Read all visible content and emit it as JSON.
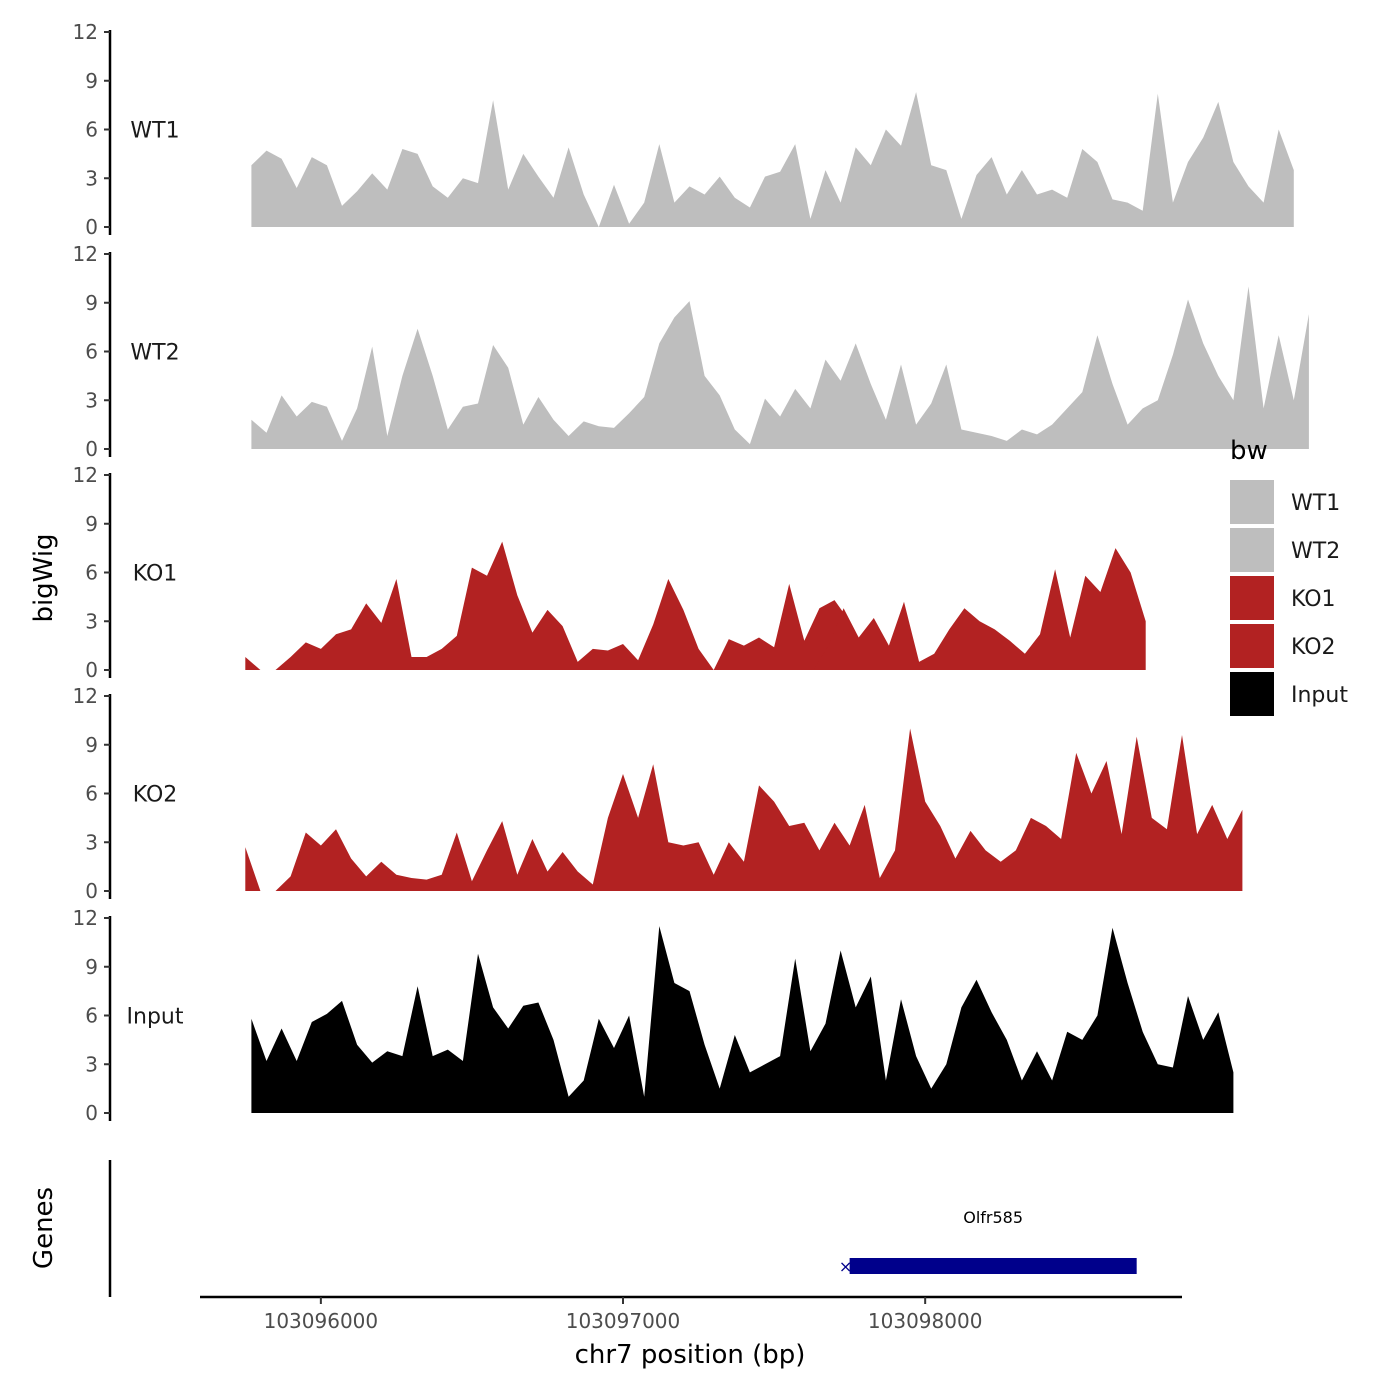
{
  "chart_data": {
    "type": "area",
    "ylabel": "bigWig",
    "xlabel": "chr7 position (bp)",
    "xlim": [
      103095600,
      103098850
    ],
    "ylim": [
      0,
      12
    ],
    "y_ticks": [
      0,
      3,
      6,
      9,
      12
    ],
    "x_ticks": [
      103096000,
      103097000,
      103098000
    ],
    "x_tick_labels": [
      "103096000",
      "103097000",
      "103098000"
    ],
    "genes_label": "Genes",
    "legend": {
      "title": "bw",
      "position": "right",
      "entries": [
        {
          "name": "WT1",
          "color": "#bebebe"
        },
        {
          "name": "WT2",
          "color": "#bebebe"
        },
        {
          "name": "KO1",
          "color": "#b22222"
        },
        {
          "name": "KO2",
          "color": "#b22222"
        },
        {
          "name": "Input",
          "color": "#000000"
        }
      ]
    },
    "series": [
      {
        "name": "WT1",
        "color": "#bebebe",
        "x_start": 103095770,
        "step": 50,
        "values": [
          3.8,
          4.7,
          4.2,
          2.4,
          4.3,
          3.8,
          1.3,
          2.2,
          3.3,
          2.3,
          4.8,
          4.5,
          2.5,
          1.8,
          3.0,
          2.7,
          7.8,
          2.3,
          4.5,
          3.1,
          1.8,
          4.9,
          2.0,
          0.0,
          2.6,
          0.2,
          1.5,
          5.1,
          1.5,
          2.5,
          2.0,
          3.1,
          1.8,
          1.2,
          3.1,
          3.4,
          5.1,
          0.5,
          3.5,
          1.5,
          4.9,
          3.8,
          6.0,
          5.0,
          8.3,
          3.8,
          3.5,
          0.5,
          3.2,
          4.3,
          2.0,
          3.5,
          2.0,
          2.3,
          1.8,
          4.8,
          4.0,
          1.7,
          1.5,
          1.0,
          8.2,
          1.5,
          4.0,
          5.5,
          7.7,
          4.0,
          2.5,
          1.5,
          6.0,
          3.5
        ]
      },
      {
        "name": "WT2",
        "color": "#bebebe",
        "x_start": 103095770,
        "step": 50,
        "values": [
          1.8,
          1.0,
          3.3,
          2.0,
          2.9,
          2.6,
          0.5,
          2.5,
          6.3,
          0.8,
          4.5,
          7.4,
          4.5,
          1.2,
          2.6,
          2.8,
          6.4,
          5.0,
          1.5,
          3.2,
          1.8,
          0.8,
          1.7,
          1.4,
          1.3,
          2.2,
          3.2,
          6.5,
          8.1,
          9.1,
          4.5,
          3.3,
          1.2,
          0.3,
          3.1,
          2.0,
          3.7,
          2.5,
          5.5,
          4.2,
          6.5,
          4.0,
          1.8,
          5.2,
          1.5,
          2.8,
          5.2,
          1.2,
          1.0,
          0.8,
          0.5,
          1.2,
          0.9,
          1.5,
          2.5,
          3.5,
          7.0,
          4.0,
          1.5,
          2.5,
          3.0,
          5.8,
          9.2,
          6.5,
          4.5,
          3.0,
          10.0,
          2.5,
          7.0,
          3.0,
          8.3
        ]
      },
      {
        "name": "KO1",
        "color": "#b22222",
        "x_start": 103095770,
        "step": 50,
        "segments": [
          {
            "x_start": 103095750,
            "values": [
              0.8,
              0.0
            ]
          },
          {
            "x_start": 103095850,
            "values": [
              0.0,
              0.8,
              1.7,
              1.3,
              2.2,
              2.5,
              4.1,
              2.9,
              5.6,
              0.8,
              0.8,
              1.3,
              2.1,
              6.3,
              5.8,
              7.9,
              4.6,
              2.3,
              3.7,
              2.7,
              0.5,
              1.3,
              1.2,
              1.6,
              0.6,
              2.8,
              5.6,
              3.7,
              1.3,
              0.0,
              1.9,
              1.5,
              2.0,
              1.4,
              5.3,
              1.8,
              3.8,
              4.3,
              3.0,
              0.8,
              0.0
            ]
          },
          {
            "x_start": 103097630,
            "values": [
              0.0,
              1.5,
              3.8,
              2.0,
              3.2,
              1.5,
              4.2,
              0.5,
              1.0,
              2.5,
              3.8,
              3.0,
              2.5,
              1.8,
              1.0,
              2.2,
              6.2,
              2.0,
              5.8,
              4.8,
              7.5,
              6.0,
              3.0
            ]
          }
        ]
      },
      {
        "name": "KO2",
        "color": "#b22222",
        "x_start": 103095770,
        "step": 50,
        "segments": [
          {
            "x_start": 103095750,
            "values": [
              2.7,
              0.0
            ]
          },
          {
            "x_start": 103095850,
            "values": [
              0.0,
              0.9,
              3.6,
              2.8,
              3.8,
              2.0,
              0.9,
              1.8,
              1.0,
              0.8,
              0.7,
              1.0,
              3.6,
              0.6,
              2.5,
              4.3,
              1.0,
              3.2,
              1.2,
              2.4,
              1.2,
              0.4,
              4.5,
              7.2,
              4.5,
              7.8,
              3.0,
              2.8,
              3.0,
              1.0,
              3.0,
              1.8,
              6.5,
              5.5,
              4.0,
              4.2,
              2.5,
              4.2,
              2.8,
              5.3,
              0.8,
              2.5,
              10.0,
              5.5,
              4.0,
              2.0,
              3.7,
              2.5,
              1.8,
              2.5,
              4.5,
              4.0,
              3.2,
              8.5,
              6.0,
              8.0,
              3.5,
              9.5,
              4.5,
              3.8,
              9.6,
              3.5,
              5.3,
              3.2,
              5.0
            ]
          }
        ]
      },
      {
        "name": "Input",
        "color": "#000000",
        "x_start": 103095770,
        "step": 50,
        "values": [
          5.8,
          3.2,
          5.2,
          3.2,
          5.6,
          6.1,
          6.9,
          4.2,
          3.1,
          3.8,
          3.5,
          7.8,
          3.5,
          3.9,
          3.2,
          9.8,
          6.5,
          5.2,
          6.6,
          6.8,
          4.5,
          1.0,
          2.0,
          5.8,
          4.0,
          6.0,
          1.0,
          11.5,
          8.0,
          7.5,
          4.2,
          1.5,
          4.8,
          2.5,
          3.0,
          3.5,
          9.5,
          3.8,
          5.5,
          10.0,
          6.5,
          8.4,
          2.0,
          7.0,
          3.5,
          1.5,
          3.0,
          6.5,
          8.2,
          6.2,
          4.5,
          2.0,
          3.8,
          2.0,
          5.0,
          4.5,
          6.0,
          11.4,
          8.0,
          5.0,
          3.0,
          2.8,
          7.2,
          4.5,
          6.2,
          2.5
        ]
      }
    ],
    "genes": [
      {
        "name": "Olfr585",
        "start": 103097750,
        "end": 103098700,
        "color": "#00008b"
      }
    ]
  }
}
